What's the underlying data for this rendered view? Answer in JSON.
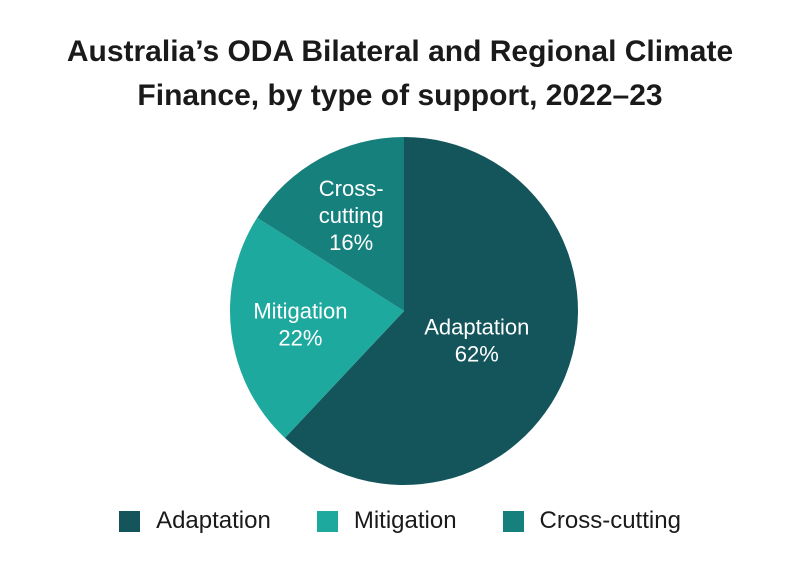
{
  "chart_data": {
    "type": "pie",
    "title_lines": [
      "Australia’s ODA Bilateral and Regional Climate",
      "Finance, by type of support, 2022–23"
    ],
    "slices": [
      {
        "name": "Adaptation",
        "value": 62,
        "label_lines": [
          "Adaptation",
          "62%"
        ],
        "color": "#14555c"
      },
      {
        "name": "Mitigation",
        "value": 22,
        "label_lines": [
          "Mitigation",
          "22%"
        ],
        "color": "#1ea99e"
      },
      {
        "name": "Cross-cutting",
        "value": 16,
        "label_lines": [
          "Cross-",
          "cutting",
          "16%"
        ],
        "color": "#16807d"
      }
    ],
    "start_angle": "top (12 o'clock)",
    "direction": "clockwise",
    "legend_position": "bottom",
    "legend": [
      {
        "label": "Adaptation",
        "color": "#14555c"
      },
      {
        "label": "Mitigation",
        "color": "#1ea99e"
      },
      {
        "label": "Cross-cutting",
        "color": "#16807d"
      }
    ]
  }
}
